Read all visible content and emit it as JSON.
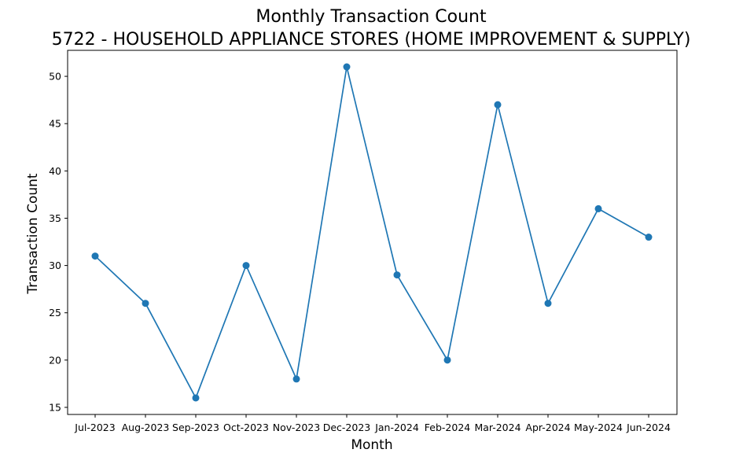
{
  "chart_data": {
    "type": "line",
    "title_line1": "Monthly Transaction Count",
    "title_line2": "5722 - HOUSEHOLD APPLIANCE STORES (HOME IMPROVEMENT & SUPPLY)",
    "xlabel": "Month",
    "ylabel": "Transaction Count",
    "categories": [
      "Jul-2023",
      "Aug-2023",
      "Sep-2023",
      "Oct-2023",
      "Nov-2023",
      "Dec-2023",
      "Jan-2024",
      "Feb-2024",
      "Mar-2024",
      "Apr-2024",
      "May-2024",
      "Jun-2024"
    ],
    "series": [
      {
        "values": [
          31,
          26,
          16,
          30,
          18,
          51,
          29,
          20,
          47,
          26,
          36,
          33
        ]
      }
    ],
    "ylim": [
      14.25,
      52.75
    ],
    "yticks": [
      15,
      20,
      25,
      30,
      35,
      40,
      45,
      50
    ],
    "grid": false,
    "legend": "none",
    "line_color": "#1f77b4",
    "marker": "circle"
  }
}
